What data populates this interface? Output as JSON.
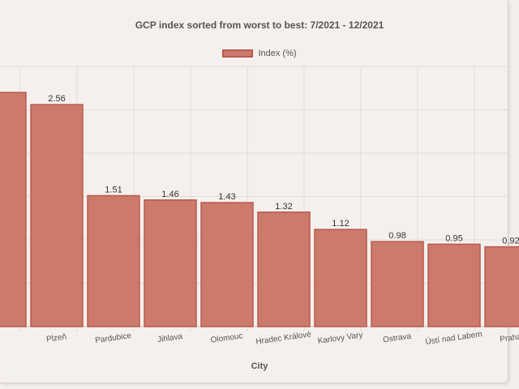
{
  "chart_data": {
    "type": "bar",
    "title": "GCP index sorted from worst to best: 7/2021 - 12/2021",
    "xlabel": "City",
    "ylabel": "",
    "legend": [
      "Index (%)"
    ],
    "legend_position": "top-center",
    "grid": true,
    "categories": [
      "",
      "Plzeň",
      "Pardubice",
      "Jihlava",
      "Olomouc",
      "Hradec Králové",
      "Karlovy Vary",
      "Ostrava",
      "Ústí nad Labem",
      "Praha"
    ],
    "values": [
      2.7,
      2.56,
      1.51,
      1.46,
      1.43,
      1.32,
      1.12,
      0.98,
      0.95,
      0.92
    ],
    "value_labels": [
      "",
      "2.56",
      "1.51",
      "1.46",
      "1.43",
      "1.32",
      "1.12",
      "0.98",
      "0.95",
      "0.92"
    ],
    "ylim": [
      0,
      3
    ],
    "colors": {
      "bar_fill": "#cc7a6c",
      "bar_stroke": "#b85a4d"
    }
  }
}
